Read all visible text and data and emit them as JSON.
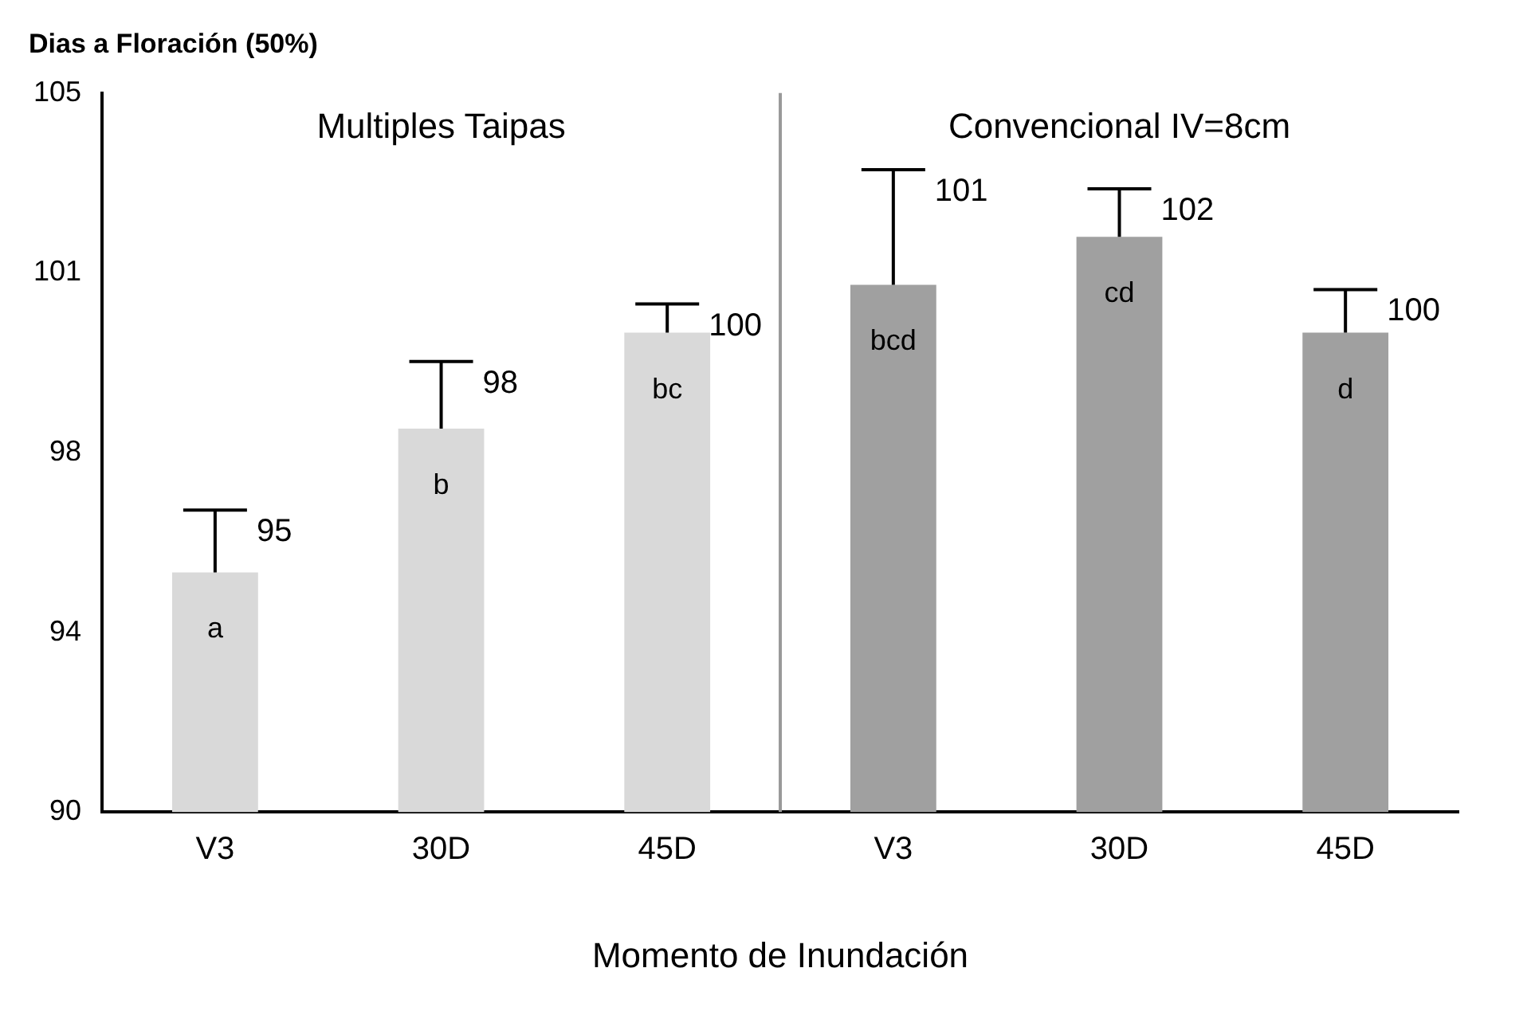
{
  "chart_data": {
    "type": "bar",
    "title": "Dias a Floración (50%)",
    "xlabel": "Momento de Inundación",
    "categories": [
      "V3",
      "30D",
      "45D",
      "V3",
      "30D",
      "45D"
    ],
    "values": [
      95,
      98,
      100,
      101,
      102,
      100
    ],
    "colors": [
      "#d9d9d9",
      "#d9d9d9",
      "#d9d9d9",
      "#a0a0a0",
      "#a0a0a0",
      "#a0a0a0"
    ],
    "errors": [
      [
        95,
        96.3
      ],
      [
        98,
        99.4
      ],
      [
        100,
        100.6
      ],
      [
        101,
        103.4
      ],
      [
        102,
        103.0
      ],
      [
        100,
        100.9
      ]
    ],
    "value_labels": [
      "95",
      "98",
      "100",
      "101",
      "102",
      "100"
    ],
    "ylim": [
      90,
      105
    ],
    "yticks": [
      90,
      {
        "value": 93.75,
        "label": "94"
      },
      {
        "value": 97.5,
        "label": "98"
      },
      {
        "value": 101.25,
        "label": "101"
      },
      105
    ],
    "annotations": [
      "Multiples Taipas",
      "Convencional IV=8cm",
      "a",
      "b",
      "bc",
      "bcd",
      "cd",
      "d"
    ],
    "grid": false,
    "legend": false
  }
}
